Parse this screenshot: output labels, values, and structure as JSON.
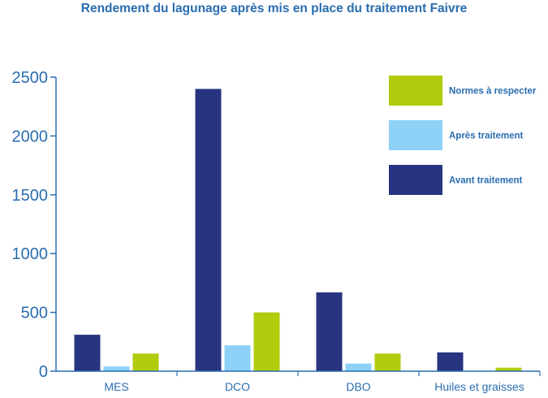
{
  "chart_data": {
    "type": "bar",
    "title": "Rendement du lagunage après mis en place du traitement Faivre",
    "categories": [
      "MES",
      "DCO",
      "DBO",
      "Huiles et graisses"
    ],
    "series": [
      {
        "name": "Avant traitement",
        "color": "#283480",
        "values": [
          310,
          2400,
          670,
          160
        ]
      },
      {
        "name": "Après traitement",
        "color": "#8dd1f7",
        "values": [
          40,
          220,
          65,
          0
        ]
      },
      {
        "name": "Normes à respecter",
        "color": "#b2cb0d",
        "values": [
          150,
          500,
          150,
          30
        ]
      }
    ],
    "ylim": [
      0,
      2500
    ],
    "yticks": [
      "0",
      "500",
      "1000",
      "1500",
      "2000",
      "2500"
    ],
    "legend_position": "top-right",
    "legend_order": [
      "Normes à respecter",
      "Après traitement",
      "Avant traitement"
    ],
    "xlabel": "",
    "ylabel": "",
    "grid": false
  }
}
